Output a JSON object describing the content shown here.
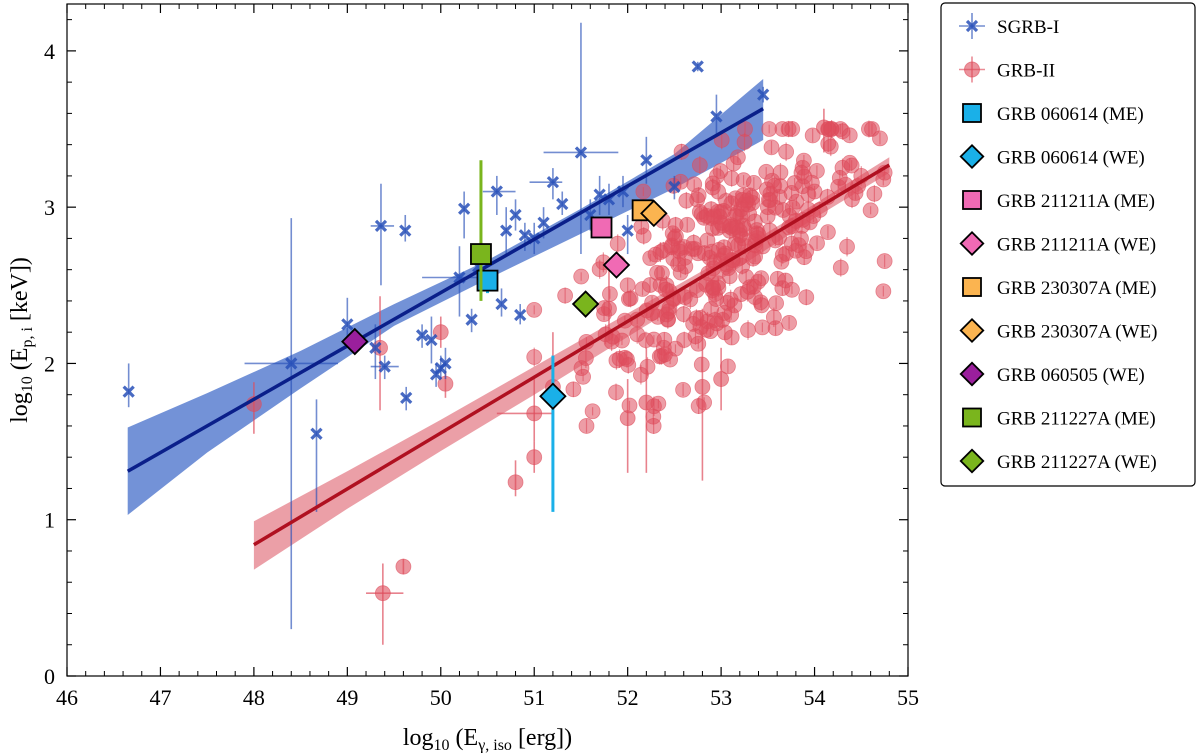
{
  "chart_data": {
    "type": "scatter",
    "xlabel_main": "log",
    "xlabel_sub": "10",
    "xlabel_expr": "(E",
    "xlabel_expr_sub": "γ, iso",
    "xlabel_unit": " [erg])",
    "ylabel_main": "log",
    "ylabel_sub": "10",
    "ylabel_expr": "(E",
    "ylabel_expr_sub": "p, i",
    "ylabel_unit": " [keV])",
    "xlim": [
      46,
      55
    ],
    "ylim": [
      0,
      4.3
    ],
    "x_ticks": [
      46,
      47,
      48,
      49,
      50,
      51,
      52,
      53,
      54,
      55
    ],
    "y_ticks": [
      0,
      1,
      2,
      3,
      4
    ],
    "colors": {
      "sgrb_i": "#2850b8",
      "sgrb_i_line": "#0a1f8a",
      "sgrb_i_band": "#5b7fd0",
      "grb_ii": "#de4d5c",
      "grb_ii_line": "#b01020",
      "grb_ii_band": "#e47f8a"
    },
    "fits": [
      {
        "name": "SGRB-I fit",
        "x": [
          46.65,
          53.45
        ],
        "y": [
          1.31,
          3.63
        ],
        "band_x": [
          46.65,
          47.5,
          48.5,
          49.5,
          50.5,
          51.5,
          52.5,
          53.45
        ],
        "band_lo": [
          1.03,
          1.43,
          1.84,
          2.24,
          2.54,
          2.83,
          3.12,
          3.43
        ],
        "band_hi": [
          1.59,
          1.81,
          2.08,
          2.38,
          2.66,
          2.99,
          3.34,
          3.82
        ]
      },
      {
        "name": "GRB-II fit",
        "x": [
          48.0,
          54.8
        ],
        "y": [
          0.84,
          3.27
        ],
        "band_x": [
          48.0,
          49.0,
          50.0,
          51.0,
          52.0,
          53.0,
          54.0,
          54.8
        ],
        "band_lo": [
          0.68,
          1.07,
          1.44,
          1.8,
          2.17,
          2.54,
          2.93,
          3.22
        ],
        "band_hi": [
          0.99,
          1.31,
          1.64,
          1.98,
          2.32,
          2.66,
          3.02,
          3.32
        ]
      }
    ],
    "sgrb_i": [
      {
        "x": 46.66,
        "y": 1.82,
        "ylo": 1.72,
        "yhi": 2.0
      },
      {
        "x": 48.4,
        "y": 2.0,
        "ylo": 0.3,
        "yhi": 2.93,
        "xlo": 47.9,
        "xhi": 48.9
      },
      {
        "x": 48.67,
        "y": 1.55,
        "ylo": 1.05,
        "yhi": 1.77
      },
      {
        "x": 49.0,
        "y": 2.25,
        "ylo": 2.1,
        "yhi": 2.42
      },
      {
        "x": 49.3,
        "y": 2.1,
        "ylo": 1.9,
        "yhi": 2.25
      },
      {
        "x": 49.36,
        "y": 2.88,
        "ylo": 2.5,
        "yhi": 3.15,
        "xlo": 49.25,
        "xhi": 49.5
      },
      {
        "x": 49.4,
        "y": 1.98,
        "ylo": 1.9,
        "yhi": 2.05,
        "xlo": 49.25,
        "xhi": 49.55
      },
      {
        "x": 49.62,
        "y": 2.85,
        "ylo": 2.78,
        "yhi": 2.95
      },
      {
        "x": 49.63,
        "y": 1.78,
        "ylo": 1.7,
        "yhi": 1.85
      },
      {
        "x": 49.8,
        "y": 2.18,
        "ylo": 2.1,
        "yhi": 2.25
      },
      {
        "x": 49.9,
        "y": 2.15,
        "ylo": 2.0,
        "yhi": 2.3
      },
      {
        "x": 49.95,
        "y": 1.93,
        "ylo": 1.85,
        "yhi": 2.0
      },
      {
        "x": 50.0,
        "y": 1.97,
        "ylo": 1.9,
        "yhi": 2.05
      },
      {
        "x": 50.05,
        "y": 2.0,
        "ylo": 1.9,
        "yhi": 2.1
      },
      {
        "x": 50.2,
        "y": 2.55,
        "ylo": 2.3,
        "yhi": 2.75,
        "xlo": 49.8,
        "xhi": 50.5
      },
      {
        "x": 50.25,
        "y": 2.99,
        "ylo": 2.8,
        "yhi": 3.1
      },
      {
        "x": 50.33,
        "y": 2.28,
        "ylo": 2.2,
        "yhi": 2.35
      },
      {
        "x": 50.4,
        "y": 2.62,
        "ylo": 2.5,
        "yhi": 2.7
      },
      {
        "x": 50.6,
        "y": 3.1,
        "ylo": 2.95,
        "yhi": 3.2,
        "xlo": 50.45,
        "xhi": 50.8
      },
      {
        "x": 50.65,
        "y": 2.38,
        "ylo": 2.3,
        "yhi": 2.48
      },
      {
        "x": 50.7,
        "y": 2.85,
        "ylo": 2.7,
        "yhi": 3.0
      },
      {
        "x": 50.8,
        "y": 2.95,
        "ylo": 2.85,
        "yhi": 3.05
      },
      {
        "x": 50.85,
        "y": 2.31,
        "ylo": 2.25,
        "yhi": 2.38
      },
      {
        "x": 50.9,
        "y": 2.82,
        "ylo": 2.72,
        "yhi": 2.9
      },
      {
        "x": 51.0,
        "y": 2.8,
        "ylo": 2.7,
        "yhi": 2.9
      },
      {
        "x": 51.1,
        "y": 2.9,
        "ylo": 2.8,
        "yhi": 3.0
      },
      {
        "x": 51.2,
        "y": 3.16,
        "ylo": 3.05,
        "yhi": 3.25,
        "xlo": 50.95,
        "xhi": 51.3
      },
      {
        "x": 51.3,
        "y": 3.02,
        "ylo": 2.95,
        "yhi": 3.1
      },
      {
        "x": 51.5,
        "y": 3.35,
        "ylo": 2.7,
        "yhi": 4.18,
        "xlo": 51.1,
        "xhi": 51.9
      },
      {
        "x": 51.6,
        "y": 2.95,
        "ylo": 2.85,
        "yhi": 3.05
      },
      {
        "x": 51.7,
        "y": 3.08,
        "ylo": 2.95,
        "yhi": 3.2
      },
      {
        "x": 51.8,
        "y": 3.05,
        "ylo": 2.95,
        "yhi": 3.15
      },
      {
        "x": 51.95,
        "y": 3.1,
        "ylo": 3.0,
        "yhi": 3.2
      },
      {
        "x": 52.0,
        "y": 2.85,
        "ylo": 2.7,
        "yhi": 2.95
      },
      {
        "x": 52.2,
        "y": 3.3,
        "ylo": 3.15,
        "yhi": 3.45
      },
      {
        "x": 52.5,
        "y": 3.13,
        "ylo": 3.05,
        "yhi": 3.2
      },
      {
        "x": 52.75,
        "y": 3.9,
        "ylo": 3.87,
        "yhi": 3.93
      },
      {
        "x": 52.95,
        "y": 3.58,
        "ylo": 3.45,
        "yhi": 3.72
      },
      {
        "x": 53.45,
        "y": 3.72,
        "ylo": 3.67,
        "yhi": 3.77
      }
    ],
    "grb_ii_errors": [
      {
        "x": 48.0,
        "y": 1.74,
        "ylo": 1.55,
        "yhi": 1.88
      },
      {
        "x": 49.38,
        "y": 0.53,
        "ylo": 0.2,
        "yhi": 0.72,
        "xlo": 49.2,
        "xhi": 49.6
      },
      {
        "x": 49.35,
        "y": 2.1,
        "ylo": 1.7,
        "yhi": 2.43
      },
      {
        "x": 49.6,
        "y": 0.7,
        "ylo": 0.65,
        "yhi": 0.75
      },
      {
        "x": 50.05,
        "y": 1.87,
        "ylo": 1.78,
        "yhi": 1.95
      },
      {
        "x": 50.0,
        "y": 2.2,
        "ylo": 2.1,
        "yhi": 2.3
      },
      {
        "x": 50.8,
        "y": 1.24,
        "ylo": 1.15,
        "yhi": 1.38
      },
      {
        "x": 51.0,
        "y": 1.4,
        "ylo": 1.3,
        "yhi": 1.5
      },
      {
        "x": 51.0,
        "y": 1.68,
        "ylo": 1.5,
        "yhi": 1.9,
        "xlo": 50.6,
        "xhi": 51.2
      },
      {
        "x": 51.2,
        "y": 1.85,
        "ylo": 1.5,
        "yhi": 2.2
      },
      {
        "x": 52.0,
        "y": 1.65,
        "ylo": 1.3,
        "yhi": 1.9
      },
      {
        "x": 52.2,
        "y": 1.75,
        "ylo": 1.3,
        "yhi": 2.1
      },
      {
        "x": 52.8,
        "y": 1.85,
        "ylo": 1.25,
        "yhi": 2.35
      },
      {
        "x": 53.0,
        "y": 1.9,
        "ylo": 1.7,
        "yhi": 2.1
      },
      {
        "x": 54.1,
        "y": 3.51,
        "ylo": 3.35,
        "yhi": 3.63
      },
      {
        "x": 51.8,
        "y": 2.35,
        "ylo": 2.15,
        "yhi": 2.6
      }
    ],
    "grb_ii_cloud": {
      "count": 330,
      "x_center": 53.05,
      "y_center": 2.7,
      "x_spread": 0.75,
      "y_spread": 0.33,
      "slope": 0.36,
      "sample": [
        [
          52.0,
          2.5
        ],
        [
          52.5,
          2.8
        ],
        [
          53.0,
          2.9
        ],
        [
          53.5,
          3.0
        ],
        [
          54.0,
          3.1
        ],
        [
          54.5,
          3.2
        ],
        [
          54.7,
          3.44
        ],
        [
          54.6,
          2.98
        ]
      ]
    },
    "special": [
      {
        "name": "GRB 060614 (ME)",
        "marker": "square",
        "color": "#1ab0e8",
        "x": 50.5,
        "y": 2.53,
        "ylo": 2.45,
        "yhi": 2.6
      },
      {
        "name": "GRB 060614 (WE)",
        "marker": "diamond",
        "color": "#1ab0e8",
        "x": 51.2,
        "y": 1.79,
        "ylo": 1.05,
        "yhi": 2.05
      },
      {
        "name": "GRB 211211A (ME)",
        "marker": "square",
        "color": "#f06ab4",
        "x": 51.72,
        "y": 2.87
      },
      {
        "name": "GRB 211211A (WE)",
        "marker": "diamond",
        "color": "#f06ab4",
        "x": 51.88,
        "y": 2.63
      },
      {
        "name": "GRB 230307A (ME)",
        "marker": "square",
        "color": "#fbb450",
        "x": 52.16,
        "y": 2.98
      },
      {
        "name": "GRB 230307A (WE)",
        "marker": "diamond",
        "color": "#fbb450",
        "x": 52.28,
        "y": 2.96
      },
      {
        "name": "GRB 060505 (WE)",
        "marker": "diamond",
        "color": "#9a1f9c",
        "x": 49.08,
        "y": 2.14
      },
      {
        "name": "GRB 211227A (ME)",
        "marker": "square",
        "color": "#7ab51d",
        "x": 50.43,
        "y": 2.7,
        "ylo": 2.4,
        "yhi": 3.3
      },
      {
        "name": "GRB 211227A (WE)",
        "marker": "diamond",
        "color": "#7ab51d",
        "x": 51.55,
        "y": 2.38
      }
    ],
    "legend": {
      "position": "outside-right-top",
      "entries": [
        {
          "label": "SGRB-I",
          "marker": "x-errbar",
          "color": "#2850b8"
        },
        {
          "label": "GRB-II",
          "marker": "circle-errbar",
          "color": "#de4d5c"
        },
        {
          "label": "GRB 060614 (ME)",
          "marker": "square",
          "color": "#1ab0e8"
        },
        {
          "label": "GRB 060614 (WE)",
          "marker": "diamond",
          "color": "#1ab0e8"
        },
        {
          "label": "GRB 211211A (ME)",
          "marker": "square",
          "color": "#f06ab4"
        },
        {
          "label": "GRB 211211A (WE)",
          "marker": "diamond",
          "color": "#f06ab4"
        },
        {
          "label": "GRB 230307A (ME)",
          "marker": "square",
          "color": "#fbb450"
        },
        {
          "label": "GRB 230307A (WE)",
          "marker": "diamond",
          "color": "#fbb450"
        },
        {
          "label": "GRB 060505 (WE)",
          "marker": "diamond",
          "color": "#9a1f9c"
        },
        {
          "label": "GRB 211227A (ME)",
          "marker": "square",
          "color": "#7ab51d"
        },
        {
          "label": "GRB 211227A (WE)",
          "marker": "diamond",
          "color": "#7ab51d"
        }
      ]
    }
  }
}
